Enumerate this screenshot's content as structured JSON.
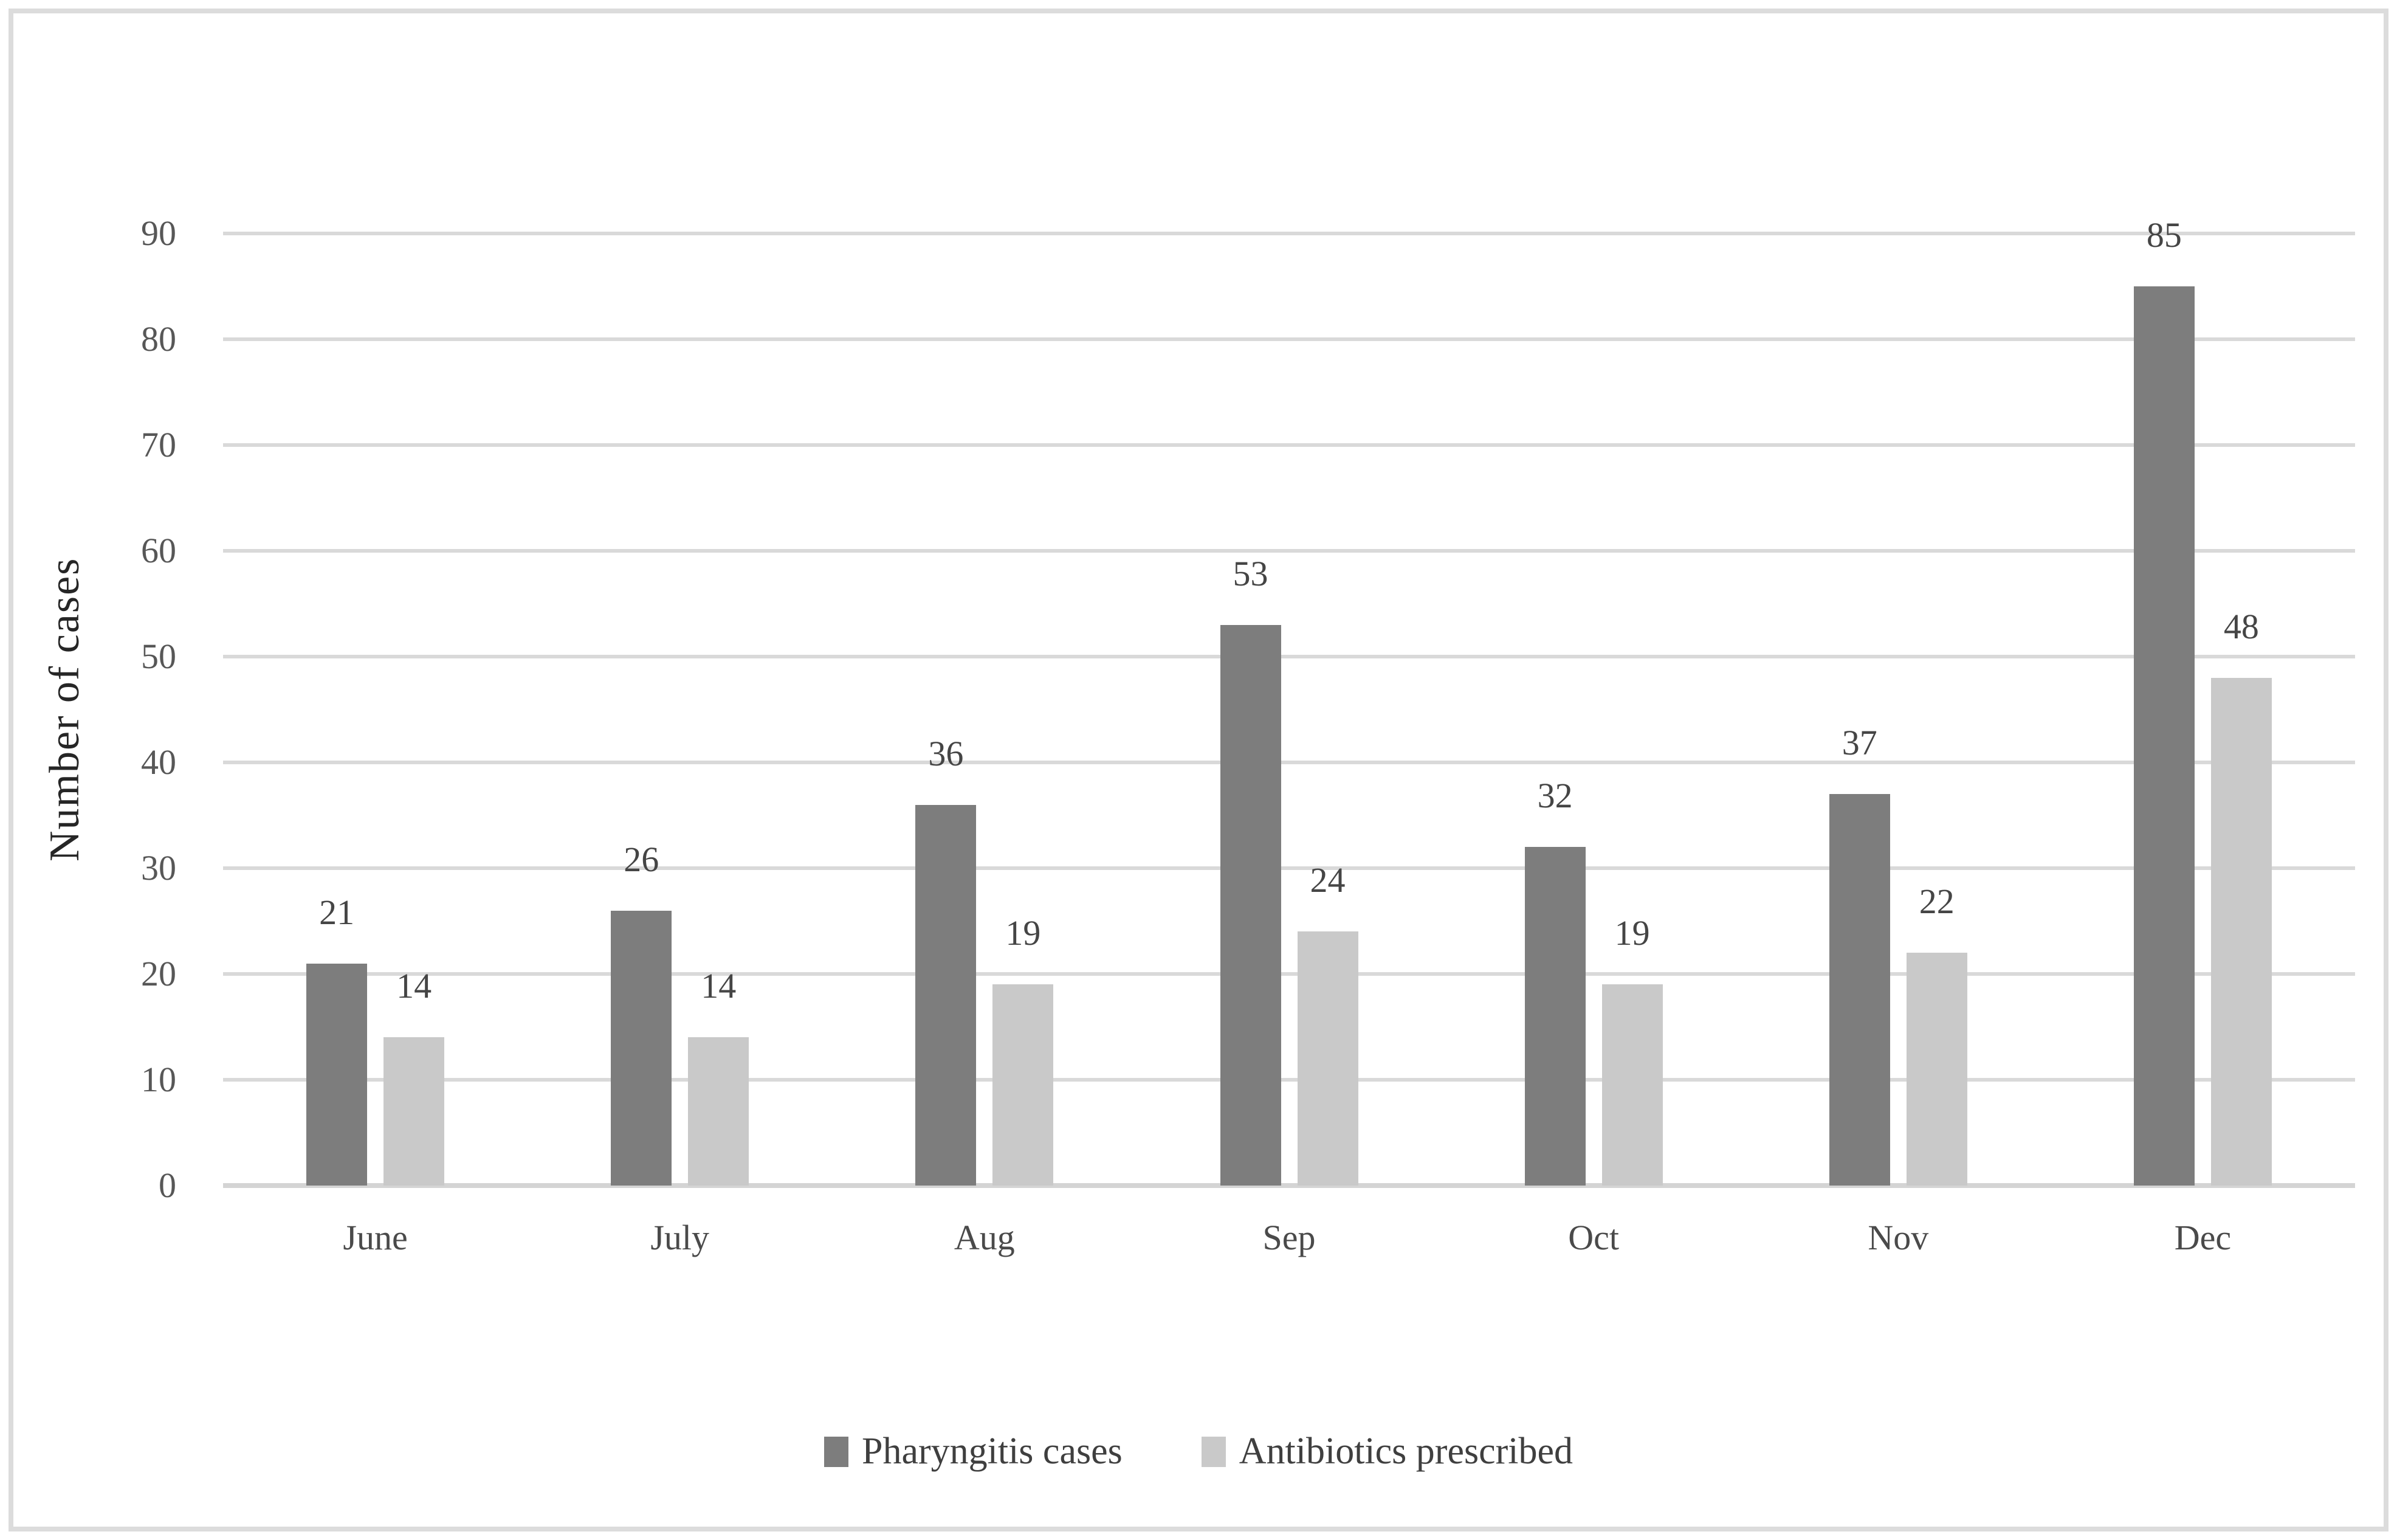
{
  "chart_data": {
    "type": "bar",
    "categories": [
      "June",
      "July",
      "Aug",
      "Sep",
      "Oct",
      "Nov",
      "Dec"
    ],
    "series": [
      {
        "name": "Pharyngitis cases",
        "color": "#7D7D7D",
        "values": [
          21,
          26,
          36,
          53,
          32,
          37,
          85
        ]
      },
      {
        "name": "Antibiotics prescribed",
        "color": "#C9C9C9",
        "values": [
          14,
          14,
          19,
          24,
          19,
          22,
          48
        ]
      }
    ],
    "ylabel": "Number of cases",
    "xlabel": "",
    "ylim": [
      0,
      90
    ],
    "yticks": [
      0,
      10,
      20,
      30,
      40,
      50,
      60,
      70,
      80,
      90
    ],
    "grid": "horizontal",
    "legend_position": "bottom",
    "data_labels": true
  },
  "colors": {
    "gridline": "#D9D9D9",
    "axis_line": "#D4D4D4",
    "tick_text": "#575757",
    "value_text": "#454545",
    "ylabel_text": "#262626",
    "legend_text": "#3F3F3F",
    "frame_border": "#DCDCDC",
    "background": "#FFFFFF"
  }
}
